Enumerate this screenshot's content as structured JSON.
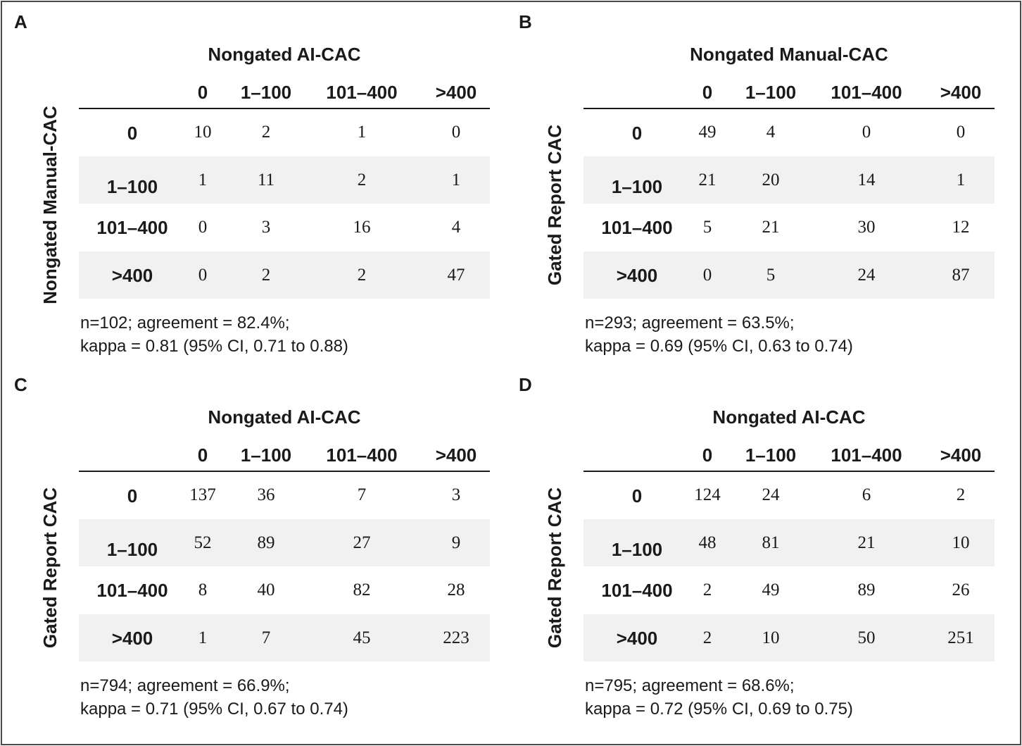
{
  "chart_data": [
    {
      "type": "table",
      "panel": "A",
      "col_title": "Nongated AI-CAC",
      "row_title": "Nongated Manual-CAC",
      "categories": [
        "0",
        "1–100",
        "101–400",
        ">400"
      ],
      "matrix": [
        [
          10,
          2,
          1,
          0
        ],
        [
          1,
          11,
          2,
          1
        ],
        [
          0,
          3,
          16,
          4
        ],
        [
          0,
          2,
          2,
          47
        ]
      ],
      "note_line1": "n=102; agreement = 82.4%;",
      "note_line2": "kappa = 0.81 (95% CI, 0.71 to 0.88)"
    },
    {
      "type": "table",
      "panel": "B",
      "col_title": "Nongated Manual-CAC",
      "row_title": "Gated Report CAC",
      "categories": [
        "0",
        "1–100",
        "101–400",
        ">400"
      ],
      "matrix": [
        [
          49,
          4,
          0,
          0
        ],
        [
          21,
          20,
          14,
          1
        ],
        [
          5,
          21,
          30,
          12
        ],
        [
          0,
          5,
          24,
          87
        ]
      ],
      "note_line1": "n=293; agreement = 63.5%;",
      "note_line2": "kappa = 0.69 (95% CI, 0.63 to 0.74)"
    },
    {
      "type": "table",
      "panel": "C",
      "col_title": "Nongated AI-CAC",
      "row_title": "Gated Report CAC",
      "categories": [
        "0",
        "1–100",
        "101–400",
        ">400"
      ],
      "matrix": [
        [
          137,
          36,
          7,
          3
        ],
        [
          52,
          89,
          27,
          9
        ],
        [
          8,
          40,
          82,
          28
        ],
        [
          1,
          7,
          45,
          223
        ]
      ],
      "note_line1": "n=794; agreement = 66.9%;",
      "note_line2": "kappa = 0.71 (95% CI, 0.67 to 0.74)"
    },
    {
      "type": "table",
      "panel": "D",
      "col_title": "Nongated AI-CAC",
      "row_title": "Gated Report CAC",
      "categories": [
        "0",
        "1–100",
        "101–400",
        ">400"
      ],
      "matrix": [
        [
          124,
          24,
          6,
          2
        ],
        [
          48,
          81,
          21,
          10
        ],
        [
          2,
          49,
          89,
          26
        ],
        [
          2,
          10,
          50,
          251
        ]
      ],
      "note_line1": "n=795; agreement = 68.6%;",
      "note_line2": "kappa = 0.72 (95% CI, 0.69 to 0.75)"
    }
  ]
}
